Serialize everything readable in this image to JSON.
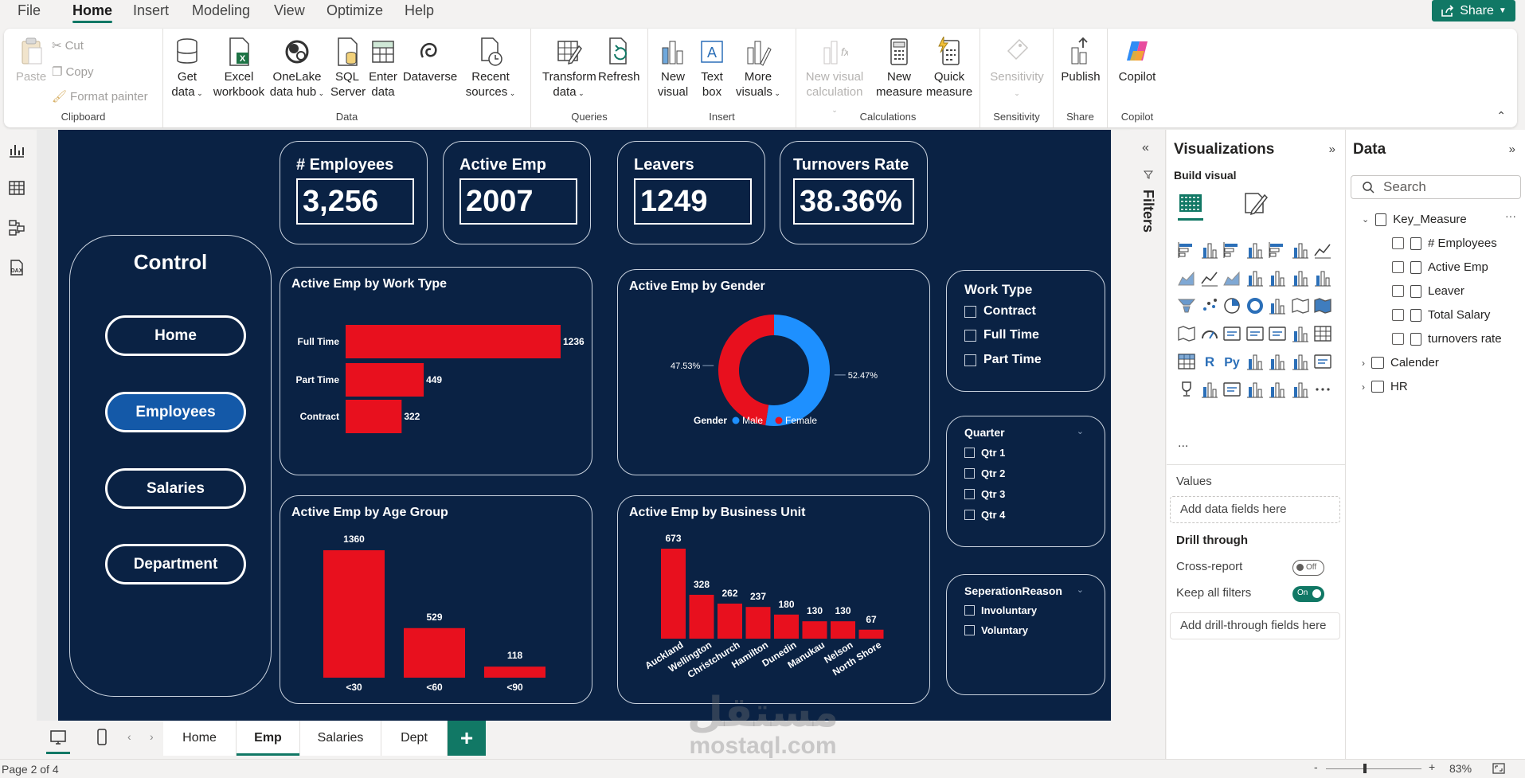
{
  "menu": {
    "items": [
      "File",
      "Home",
      "Insert",
      "Modeling",
      "View",
      "Optimize",
      "Help"
    ],
    "active": "Home",
    "share_label": "Share"
  },
  "ribbon": {
    "clipboard": {
      "paste": "Paste",
      "cut": "Cut",
      "copy": "Copy",
      "format_painter": "Format painter",
      "label": "Clipboard"
    },
    "data": {
      "get_data": [
        "Get",
        "data"
      ],
      "excel": [
        "Excel",
        "workbook"
      ],
      "onelake": [
        "OneLake",
        "data hub"
      ],
      "sql": [
        "SQL",
        "Server"
      ],
      "enter": [
        "Enter",
        "data"
      ],
      "dataverse": [
        "Dataverse",
        ""
      ],
      "recent": [
        "Recent",
        "sources"
      ],
      "label": "Data"
    },
    "queries": {
      "transform": [
        "Transform",
        "data"
      ],
      "refresh": [
        "Refresh",
        ""
      ],
      "label": "Queries"
    },
    "insert": {
      "new_visual": [
        "New",
        "visual"
      ],
      "text_box": [
        "Text",
        "box"
      ],
      "more_visuals": [
        "More",
        "visuals"
      ],
      "label": "Insert"
    },
    "calculations": {
      "new_visual_calc": [
        "New visual",
        "calculation"
      ],
      "new_measure": [
        "New",
        "measure"
      ],
      "quick_measure": [
        "Quick",
        "measure"
      ],
      "label": "Calculations"
    },
    "sensitivity": {
      "button": [
        "Sensitivity",
        ""
      ],
      "label": "Sensitivity"
    },
    "share": {
      "publish": [
        "Publish",
        ""
      ],
      "label": "Share"
    },
    "copilot": {
      "button": [
        "Copilot",
        ""
      ],
      "label": "Copilot"
    }
  },
  "report": {
    "kpis": [
      {
        "label": "# Employees",
        "value": "3,256"
      },
      {
        "label": "Active Emp",
        "value": "2007"
      },
      {
        "label": "Leavers",
        "value": "1249"
      },
      {
        "label": "Turnovers Rate",
        "value": "38.36%"
      }
    ],
    "control": {
      "title": "Control",
      "buttons": [
        "Home",
        "Employees",
        "Salaries",
        "Department"
      ],
      "selected": "Employees"
    },
    "work_type_slicer": {
      "title": "Work Type",
      "items": [
        "Contract",
        "Full Time",
        "Part Time"
      ]
    },
    "quarter_slicer": {
      "title": "Quarter",
      "items": [
        "Qtr 1",
        "Qtr 2",
        "Qtr 3",
        "Qtr 4"
      ]
    },
    "separation_slicer": {
      "title": "SeperationReason",
      "items": [
        "Involuntary",
        "Voluntary"
      ]
    },
    "colors": {
      "background": "#0a2244",
      "bar": "#e8101e",
      "male": "#1e90ff",
      "female": "#e8101e",
      "selected_button": "#1459a8"
    }
  },
  "chart_data": [
    {
      "type": "bar",
      "orientation": "horizontal",
      "title": "Active Emp by Work Type",
      "categories": [
        "Full Time",
        "Part Time",
        "Contract"
      ],
      "values": [
        1236,
        449,
        322
      ]
    },
    {
      "type": "pie",
      "variant": "donut",
      "title": "Active Emp by Gender",
      "legend_title": "Gender",
      "categories": [
        "Male",
        "Female"
      ],
      "values": [
        52.47,
        47.53
      ],
      "labels": [
        "52.47%",
        "47.53%"
      ],
      "legend_position": "bottom"
    },
    {
      "type": "bar",
      "title": "Active Emp by Age Group",
      "categories": [
        "<30",
        "<60",
        "<90"
      ],
      "values": [
        1360,
        529,
        118
      ]
    },
    {
      "type": "bar",
      "title": "Active Emp by Business Unit",
      "categories": [
        "Auckland",
        "Wellington",
        "Christchurch",
        "Hamilton",
        "Dunedin",
        "Manukau",
        "Nelson",
        "North Shore"
      ],
      "values": [
        673,
        328,
        262,
        237,
        180,
        130,
        130,
        67
      ]
    }
  ],
  "filters_pane": {
    "label": "Filters"
  },
  "visualizations_pane": {
    "title": "Visualizations",
    "build_visual": "Build visual",
    "more": "...",
    "values_label": "Values",
    "values_drop": "Add data fields here",
    "drill_through": "Drill through",
    "cross_report": "Cross-report",
    "cross_report_state": "Off",
    "keep_filters": "Keep all filters",
    "keep_filters_state": "On",
    "drill_drop": "Add drill-through fields here",
    "r_label": "R",
    "py_label": "Py"
  },
  "data_pane": {
    "title": "Data",
    "search_placeholder": "Search",
    "tables": [
      {
        "name": "Key_Measure",
        "expanded": true,
        "fields": [
          "# Employees",
          "Active Emp",
          "Leaver",
          "Total Salary",
          "turnovers rate"
        ]
      },
      {
        "name": "Calender",
        "expanded": false,
        "fields": []
      },
      {
        "name": "HR",
        "expanded": false,
        "fields": []
      }
    ]
  },
  "page_tabs": {
    "tabs": [
      "Home",
      "Emp",
      "Salaries",
      "Dept"
    ],
    "active": "Emp",
    "add": "+"
  },
  "status": {
    "page": "Page 2 of 4",
    "zoom": "83%"
  },
  "watermark": {
    "logo": "مستقل",
    "url": "mostaql.com"
  }
}
